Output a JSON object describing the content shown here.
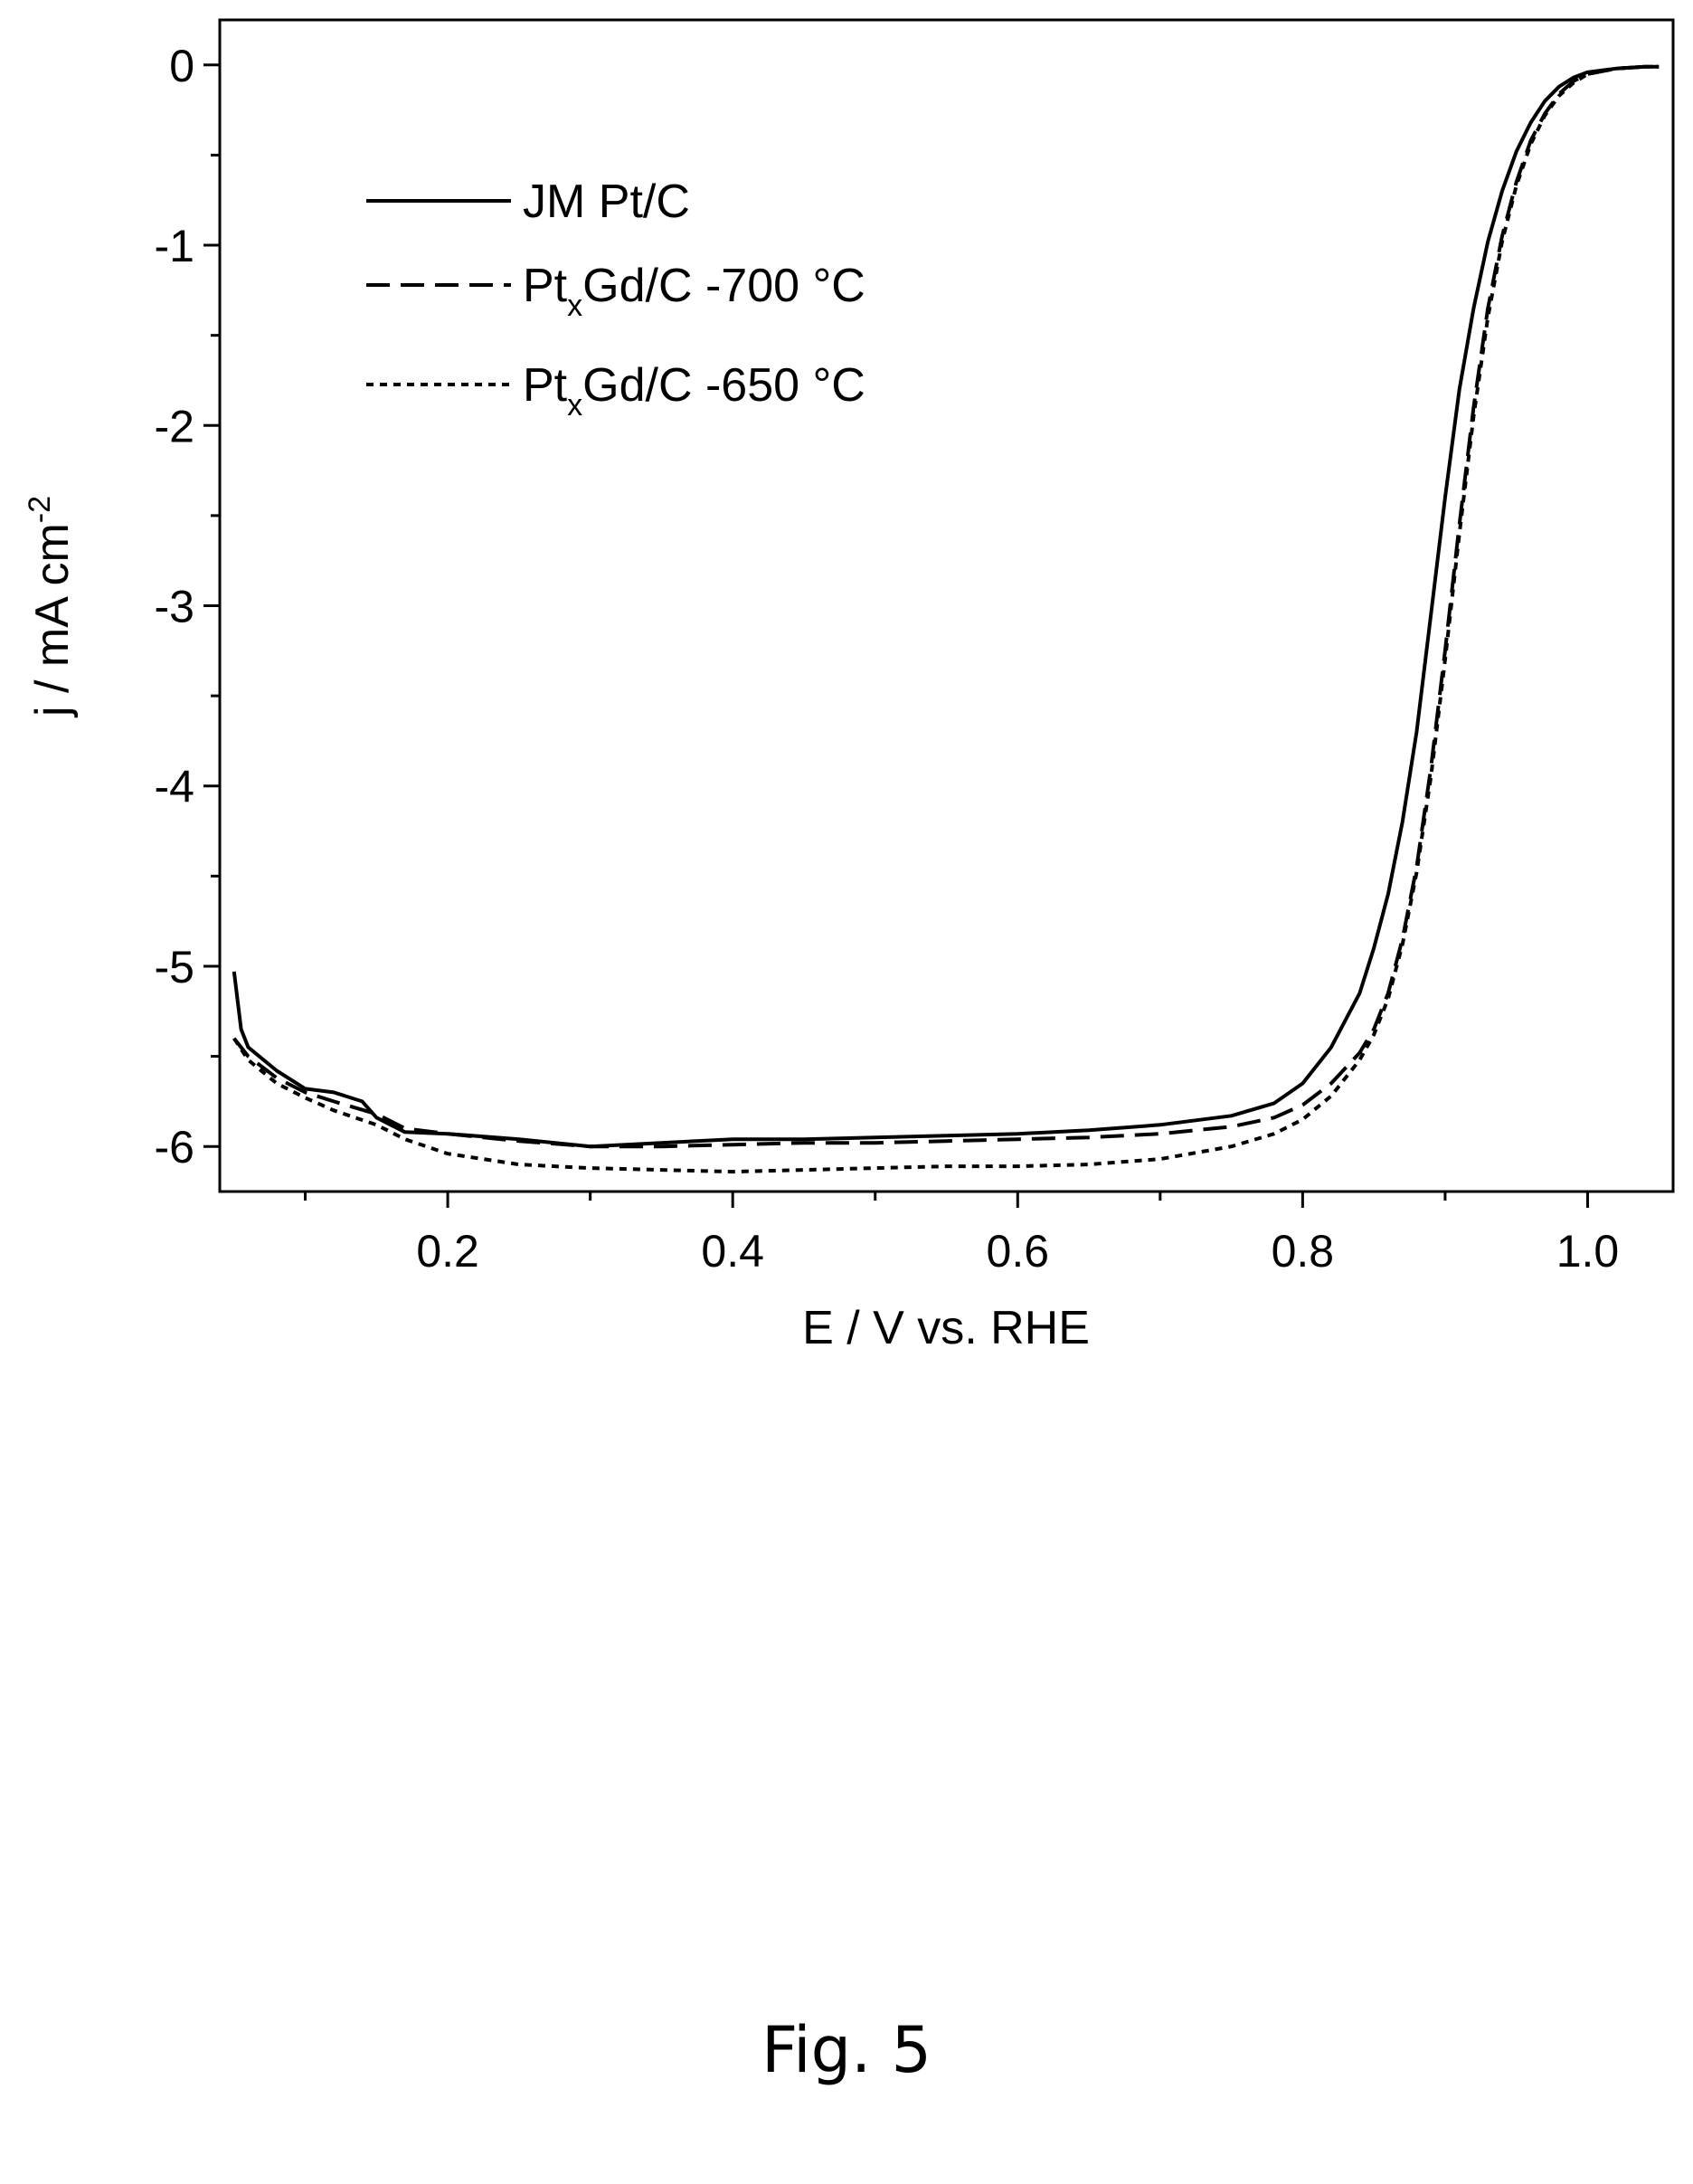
{
  "chart_data": {
    "type": "line",
    "xlabel": "E / V vs. RHE",
    "ylabel": {
      "main": "j / mA cm",
      "sup": "-2"
    },
    "xlim": [
      0.04,
      1.06
    ],
    "ylim": [
      -6.25,
      0.25
    ],
    "x_ticks": [
      0.2,
      0.4,
      0.6,
      0.8,
      1.0
    ],
    "x_tick_labels": [
      "0.2",
      "0.4",
      "0.6",
      "0.8",
      "1.0"
    ],
    "y_ticks": [
      0,
      -1,
      -2,
      -3,
      -4,
      -5,
      -6
    ],
    "y_tick_labels": [
      "0",
      "-1",
      "-2",
      "-3",
      "-4",
      "-5",
      "-6"
    ],
    "grid": false,
    "legend_position": "top-left",
    "series": [
      {
        "name": "JM Pt/C",
        "style": "solid",
        "x": [
          0.05,
          0.055,
          0.06,
          0.08,
          0.1,
          0.12,
          0.14,
          0.15,
          0.17,
          0.2,
          0.25,
          0.3,
          0.35,
          0.4,
          0.45,
          0.5,
          0.55,
          0.6,
          0.65,
          0.7,
          0.75,
          0.78,
          0.8,
          0.82,
          0.84,
          0.85,
          0.86,
          0.87,
          0.88,
          0.89,
          0.9,
          0.91,
          0.92,
          0.93,
          0.94,
          0.95,
          0.96,
          0.97,
          0.98,
          0.99,
          1.0,
          1.02,
          1.04,
          1.05
        ],
        "y": [
          -5.03,
          -5.35,
          -5.45,
          -5.58,
          -5.68,
          -5.7,
          -5.75,
          -5.84,
          -5.92,
          -5.93,
          -5.96,
          -6.0,
          -5.98,
          -5.96,
          -5.96,
          -5.95,
          -5.94,
          -5.93,
          -5.91,
          -5.88,
          -5.83,
          -5.76,
          -5.65,
          -5.45,
          -5.15,
          -4.9,
          -4.6,
          -4.2,
          -3.7,
          -3.05,
          -2.4,
          -1.8,
          -1.35,
          -0.98,
          -0.7,
          -0.48,
          -0.32,
          -0.2,
          -0.12,
          -0.07,
          -0.04,
          -0.02,
          -0.01,
          -0.01
        ]
      },
      {
        "name": "Pt<sub>x</sub>Gd/C -700 °C",
        "name_parts": [
          "Pt",
          "x",
          "Gd/C -700 °C"
        ],
        "style": "dashed",
        "x": [
          0.05,
          0.06,
          0.08,
          0.1,
          0.12,
          0.15,
          0.17,
          0.2,
          0.25,
          0.3,
          0.35,
          0.4,
          0.45,
          0.5,
          0.55,
          0.6,
          0.65,
          0.7,
          0.75,
          0.78,
          0.8,
          0.82,
          0.84,
          0.85,
          0.86,
          0.87,
          0.88,
          0.89,
          0.9,
          0.91,
          0.92,
          0.93,
          0.94,
          0.95,
          0.96,
          0.97,
          0.98,
          0.99,
          1.0,
          1.02,
          1.04,
          1.05
        ],
        "y": [
          -5.4,
          -5.5,
          -5.62,
          -5.7,
          -5.75,
          -5.82,
          -5.9,
          -5.93,
          -5.97,
          -6.0,
          -6.0,
          -5.99,
          -5.98,
          -5.98,
          -5.97,
          -5.96,
          -5.95,
          -5.93,
          -5.89,
          -5.84,
          -5.77,
          -5.65,
          -5.48,
          -5.35,
          -5.15,
          -4.85,
          -4.45,
          -3.9,
          -3.25,
          -2.55,
          -1.9,
          -1.35,
          -0.95,
          -0.65,
          -0.42,
          -0.27,
          -0.16,
          -0.09,
          -0.05,
          -0.02,
          -0.01,
          -0.01
        ]
      },
      {
        "name": "Pt<sub>x</sub>Gd/C -650 °C",
        "name_parts": [
          "Pt",
          "x",
          "Gd/C -650 °C"
        ],
        "style": "dotted",
        "x": [
          0.05,
          0.06,
          0.08,
          0.1,
          0.12,
          0.15,
          0.17,
          0.2,
          0.25,
          0.3,
          0.35,
          0.4,
          0.45,
          0.5,
          0.55,
          0.6,
          0.65,
          0.7,
          0.75,
          0.78,
          0.8,
          0.82,
          0.84,
          0.85,
          0.86,
          0.87,
          0.88,
          0.89,
          0.9,
          0.91,
          0.92,
          0.93,
          0.94,
          0.95,
          0.96,
          0.97,
          0.98,
          0.99,
          1.0,
          1.02,
          1.04,
          1.05
        ],
        "y": [
          -5.4,
          -5.52,
          -5.65,
          -5.73,
          -5.8,
          -5.88,
          -5.96,
          -6.04,
          -6.1,
          -6.12,
          -6.13,
          -6.14,
          -6.13,
          -6.12,
          -6.11,
          -6.11,
          -6.1,
          -6.07,
          -6.0,
          -5.93,
          -5.85,
          -5.72,
          -5.52,
          -5.38,
          -5.18,
          -4.88,
          -4.48,
          -3.95,
          -3.3,
          -2.6,
          -1.95,
          -1.4,
          -0.98,
          -0.67,
          -0.44,
          -0.28,
          -0.17,
          -0.1,
          -0.05,
          -0.02,
          -0.01,
          -0.01
        ]
      }
    ]
  },
  "caption": "Fig. 5"
}
